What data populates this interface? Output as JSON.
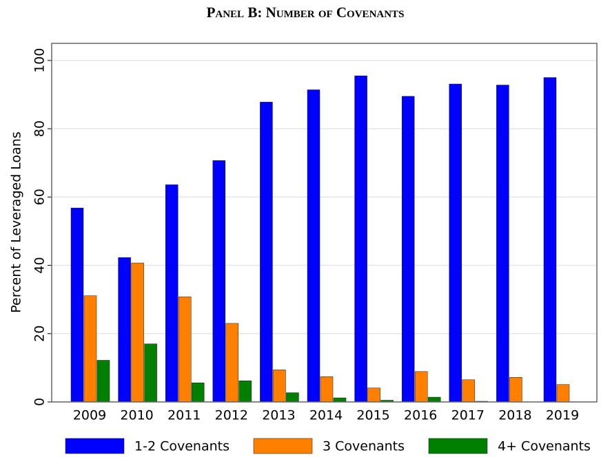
{
  "chart_data": {
    "type": "bar",
    "title": "Panel B: Number of Covenants",
    "y_label": "Percent of Leveraged Loans",
    "categories": [
      "2009",
      "2010",
      "2011",
      "2012",
      "2013",
      "2014",
      "2015",
      "2016",
      "2017",
      "2018",
      "2019"
    ],
    "series": [
      {
        "name": "1-2 Covenants",
        "color": "#0000ff",
        "values": [
          56.8,
          42.3,
          63.6,
          70.7,
          87.8,
          91.4,
          95.5,
          89.5,
          93.1,
          92.8,
          95.0
        ]
      },
      {
        "name": "3 Covenants",
        "color": "#ff8000",
        "values": [
          31.1,
          40.7,
          30.8,
          23.0,
          9.4,
          7.4,
          4.1,
          8.9,
          6.5,
          7.2,
          5.1
        ]
      },
      {
        "name": "4+ Covenants",
        "color": "#007f00",
        "values": [
          12.2,
          17.0,
          5.6,
          6.2,
          2.7,
          1.2,
          0.5,
          1.4,
          0.2,
          0,
          0
        ]
      }
    ],
    "ylim": [
      0,
      105
    ],
    "yticks": [
      0,
      20,
      40,
      60,
      80,
      100
    ],
    "grid": true,
    "legend": "bottom"
  }
}
